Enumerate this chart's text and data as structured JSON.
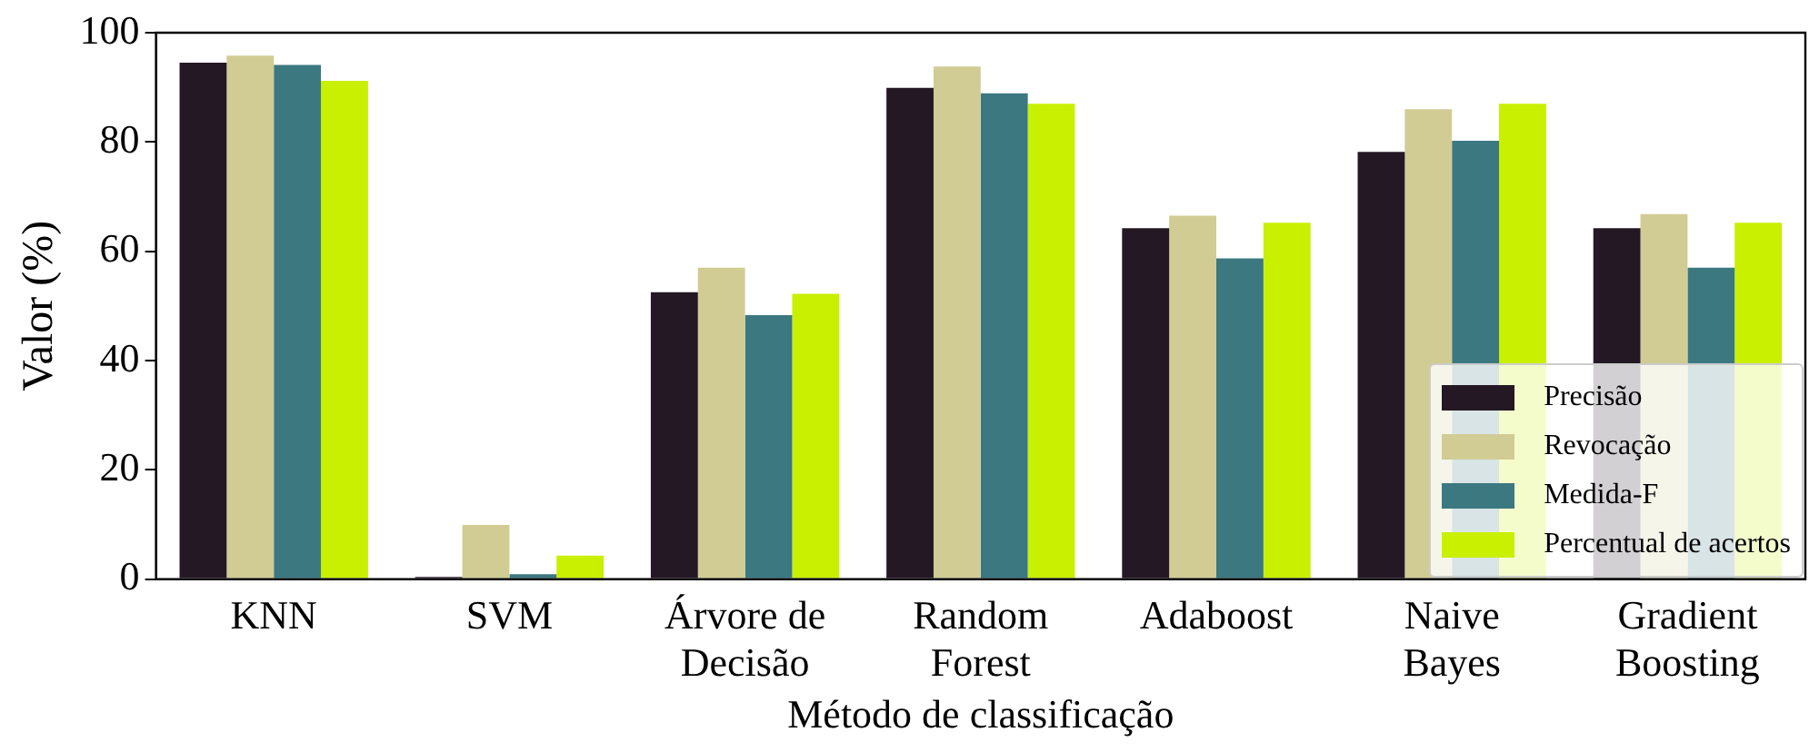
{
  "chart_data": {
    "type": "bar",
    "xlabel": "Método de classificação",
    "ylabel": "Valor (%)",
    "categories": [
      "KNN",
      "SVM",
      "Árvore de\nDecisão",
      "Random\nForest",
      "Adaboost",
      "Naive\nBayes",
      "Gradient\nBoosting"
    ],
    "series": [
      {
        "name": "Precisão",
        "color": "#241824",
        "values": [
          94.5,
          0.4,
          52.5,
          89.9,
          64.2,
          78.2,
          64.2
        ]
      },
      {
        "name": "Revocação",
        "color": "#d0cc94",
        "values": [
          95.8,
          9.9,
          57.0,
          93.8,
          66.5,
          86.0,
          66.8
        ]
      },
      {
        "name": "Medida-F",
        "color": "#3c7880",
        "values": [
          94.1,
          0.9,
          48.3,
          88.9,
          58.7,
          80.2,
          57.0
        ]
      },
      {
        "name": "Percentual de acertos",
        "color": "#c8f000",
        "values": [
          91.2,
          4.3,
          52.2,
          87.0,
          65.2,
          87.0,
          65.2
        ]
      }
    ],
    "ylim": [
      0,
      100
    ],
    "yticks": [
      0,
      20,
      40,
      60,
      80,
      100
    ],
    "grid": false,
    "legend": "bottom right"
  }
}
